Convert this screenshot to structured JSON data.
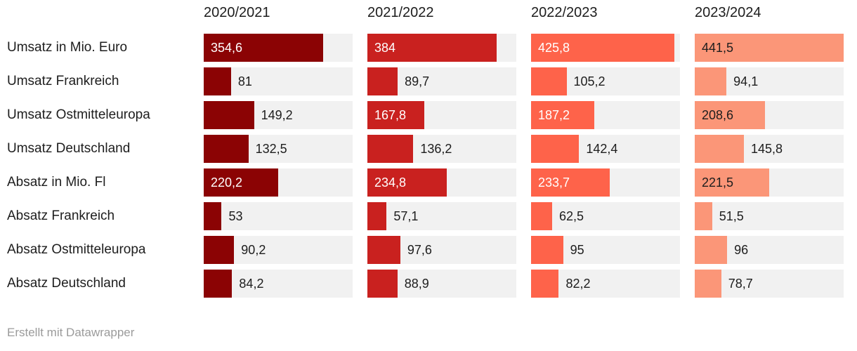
{
  "chart_data": {
    "type": "bar",
    "layout": "split-bars-per-column",
    "columns": [
      "2020/2021",
      "2021/2022",
      "2022/2023",
      "2023/2024"
    ],
    "categories": [
      "Umsatz in Mio. Euro",
      "Umsatz Frankreich",
      "Umsatz Ostmitteleuropa",
      "Umsatz Deutschland",
      "Absatz in Mio. Fl",
      "Absatz Frankreich",
      "Absatz Ostmitteleuropa",
      "Absatz Deutschland"
    ],
    "series": [
      {
        "name": "2020/2021",
        "color": "#8b0304",
        "inside_label_color": "#ffffff",
        "values": [
          354.6,
          81,
          149.2,
          132.5,
          220.2,
          53,
          90.2,
          84.2
        ],
        "labels": [
          "354,6",
          "81",
          "149,2",
          "132,5",
          "220,2",
          "53",
          "90,2",
          "84,2"
        ]
      },
      {
        "name": "2021/2022",
        "color": "#c9211f",
        "inside_label_color": "#ffffff",
        "values": [
          384,
          89.7,
          167.8,
          136.2,
          234.8,
          57.1,
          97.6,
          88.9
        ],
        "labels": [
          "384",
          "89,7",
          "167,8",
          "136,2",
          "234,8",
          "57,1",
          "97,6",
          "88,9"
        ]
      },
      {
        "name": "2022/2023",
        "color": "#fe634a",
        "inside_label_color": "#ffffff",
        "values": [
          425.8,
          105.2,
          187.2,
          142.4,
          233.7,
          62.5,
          95,
          82.2
        ],
        "labels": [
          "425,8",
          "105,2",
          "187,2",
          "142,4",
          "233,7",
          "62,5",
          "95",
          "82,2"
        ]
      },
      {
        "name": "2023/2024",
        "color": "#fb9678",
        "inside_label_color": "#1d1d1d",
        "values": [
          441.5,
          94.1,
          208.6,
          145.8,
          221.5,
          51.5,
          96,
          78.7
        ],
        "labels": [
          "441,5",
          "94,1",
          "208,6",
          "145,8",
          "221,5",
          "51,5",
          "96",
          "78,7"
        ]
      }
    ],
    "xlim": [
      0,
      441.5
    ],
    "value_label_inside_min": 160,
    "grid": false,
    "legend_position": "column-headers"
  },
  "colors": {
    "track": "#f1f1f1",
    "text": "#1d1d1d",
    "footer_text": "#9b9b9b"
  },
  "footer": {
    "credit": "Erstellt mit Datawrapper"
  }
}
